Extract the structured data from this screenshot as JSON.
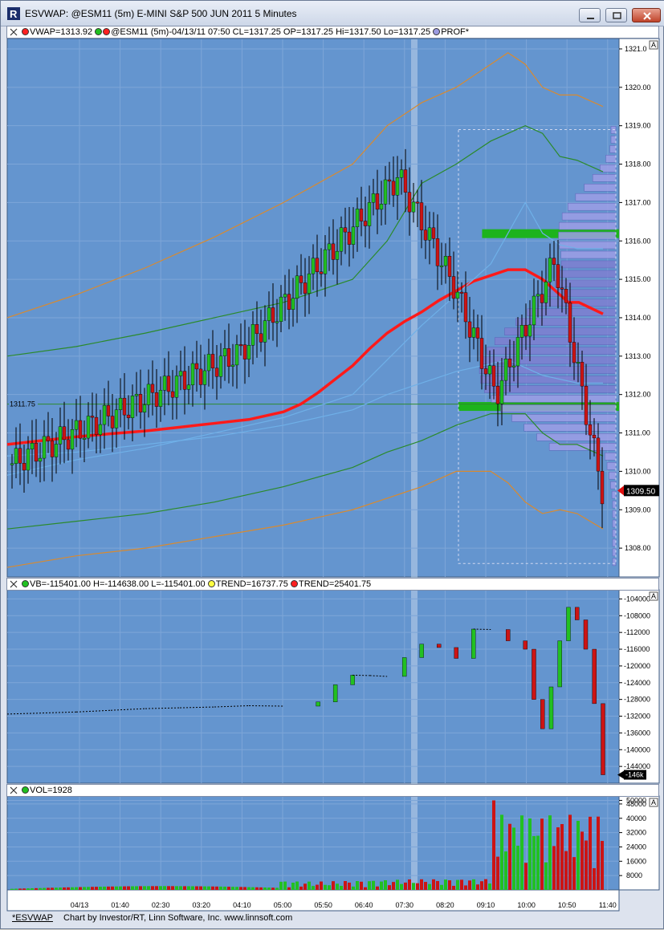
{
  "window": {
    "title": "ESVWAP: @ESM11 (5m) E-MINI S&P 500 JUN 2011 5 Minutes"
  },
  "panes": {
    "price": {
      "legend": [
        {
          "color": "#ff2020",
          "text": "VWAP=1313.92"
        },
        {
          "color": "#20c020",
          "text": "",
          "pair": "#ff2020"
        },
        {
          "color": "",
          "text": "@ESM11 (5m)-04/13/11 07:50  CL=1317.25  OP=1317.25  Hi=1317.50  Lo=1317.25"
        },
        {
          "color": "#9b9be0",
          "text": "PROF*"
        }
      ],
      "autoscale_label": "A",
      "marker_left": "1311.75",
      "last_price": "1309.50"
    },
    "volume_breadth": {
      "legend": [
        {
          "color": "#20c020",
          "text": "VB=-115401.00  H=-114638.00  L=-115401.00"
        },
        {
          "color": "#ffff40",
          "text": "TREND=16737.75"
        },
        {
          "color": "#ff2020",
          "text": "TREND=25401.75"
        }
      ],
      "autoscale_label": "A",
      "last_value": "-146k"
    },
    "volume": {
      "legend": [
        {
          "color": "#20c020",
          "text": "VOL=1928"
        }
      ],
      "autoscale_label": "A"
    }
  },
  "status": {
    "name": "*ESVWAP",
    "credit": "Chart by Investor/RT, Linn Software, Inc. www.linnsoft.com"
  },
  "chart_data": [
    {
      "type": "candlestick",
      "ylim": [
        1307.25,
        1321.25
      ],
      "y_ticks": [
        "1321.0",
        "1320.00",
        "1319.00",
        "1318.00",
        "1317.00",
        "1316.00",
        "1315.00",
        "1314.00",
        "1313.00",
        "1312.00",
        "1311.00",
        "1310.00",
        "1309.00",
        "1308.00"
      ],
      "series": [
        {
          "name": "VWAP",
          "color": "#ff1a1a",
          "x": [
            0,
            20,
            40,
            60,
            80,
            100,
            120,
            140,
            160,
            170,
            180,
            190,
            200,
            210,
            220,
            230,
            240,
            250,
            260,
            270,
            280,
            290,
            300,
            310,
            320,
            325,
            331,
            345
          ],
          "y": [
            1310.7,
            1310.8,
            1310.9,
            1310.98,
            1311.05,
            1311.15,
            1311.25,
            1311.35,
            1311.55,
            1311.75,
            1312.05,
            1312.4,
            1312.75,
            1313.2,
            1313.6,
            1313.9,
            1314.15,
            1314.45,
            1314.7,
            1314.95,
            1315.1,
            1315.25,
            1315.25,
            1315.0,
            1314.6,
            1314.4,
            1314.4,
            1314.1
          ]
        },
        {
          "name": "",
          "color": "#2b8a2b",
          "role": "upper band 1",
          "x": [
            0,
            40,
            80,
            120,
            160,
            200,
            220,
            240,
            260,
            280,
            300,
            310,
            320,
            330,
            345
          ],
          "y": [
            1313.0,
            1313.25,
            1313.6,
            1314.0,
            1314.4,
            1315.0,
            1316.0,
            1317.5,
            1318.0,
            1318.6,
            1319.0,
            1318.8,
            1318.2,
            1318.1,
            1317.8
          ]
        },
        {
          "name": "",
          "color": "#2b8a2b",
          "role": "lower band 1",
          "x": [
            0,
            40,
            80,
            120,
            160,
            200,
            220,
            240,
            260,
            280,
            300,
            310,
            320,
            330,
            345
          ],
          "y": [
            1308.5,
            1308.7,
            1308.9,
            1309.2,
            1309.6,
            1310.1,
            1310.5,
            1310.8,
            1311.2,
            1311.5,
            1311.5,
            1311.0,
            1310.7,
            1310.7,
            1310.4
          ]
        },
        {
          "name": "",
          "color": "#d88a30",
          "role": "upper band 2",
          "x": [
            0,
            40,
            80,
            120,
            160,
            200,
            220,
            240,
            260,
            280,
            290,
            300,
            310,
            320,
            330,
            345
          ],
          "y": [
            1314.0,
            1314.6,
            1315.3,
            1316.1,
            1317.0,
            1318.0,
            1319.0,
            1319.6,
            1320.0,
            1320.6,
            1320.9,
            1320.6,
            1320.0,
            1319.8,
            1319.8,
            1319.5
          ]
        },
        {
          "name": "",
          "color": "#d88a30",
          "role": "lower band 2",
          "x": [
            0,
            40,
            80,
            120,
            160,
            200,
            220,
            240,
            260,
            280,
            290,
            300,
            310,
            320,
            330,
            345
          ],
          "y": [
            1307.5,
            1307.8,
            1308.0,
            1308.3,
            1308.6,
            1309.0,
            1309.3,
            1309.6,
            1310.0,
            1310.0,
            1309.7,
            1309.2,
            1308.9,
            1309.0,
            1308.9,
            1308.5
          ]
        },
        {
          "name": "",
          "color": "#6fb0e8",
          "role": "inner band",
          "x": [
            0,
            40,
            80,
            120,
            160,
            200,
            220,
            240,
            260,
            280,
            290,
            300,
            310,
            320,
            330,
            345
          ],
          "y": [
            1309.9,
            1310.3,
            1310.6,
            1311.0,
            1311.4,
            1312.0,
            1312.9,
            1313.8,
            1314.6,
            1315.4,
            1316.2,
            1317.0,
            1316.2,
            1315.9,
            1315.8,
            1315.8
          ]
        },
        {
          "name": "",
          "color": "#6fb0e8",
          "role": "inner band lower",
          "x": [
            0,
            40,
            80,
            120,
            160,
            200,
            220,
            240,
            260,
            280,
            290,
            300,
            310,
            320,
            330,
            345
          ],
          "y": [
            1310.4,
            1310.5,
            1310.7,
            1310.9,
            1311.2,
            1311.6,
            1312.0,
            1312.3,
            1312.6,
            1312.8,
            1312.9,
            1312.7,
            1312.5,
            1312.4,
            1312.3,
            1312.3
          ]
        }
      ],
      "value_area_high": 1316.2,
      "value_area_low": 1311.7,
      "reference_line": 1311.75
    },
    {
      "type": "candlestick",
      "title": "VB",
      "ylim": [
        -148000,
        -102000
      ],
      "y_ticks": [
        "-104000",
        "-108000",
        "-112000",
        "-116000",
        "-120000",
        "-124000",
        "-128000",
        "-132000",
        "-136000",
        "-140000",
        "-144000"
      ],
      "series": [
        {
          "name": "VB",
          "x": [
            0,
            40,
            60,
            80,
            100,
            120,
            140,
            160,
            180,
            190,
            200,
            210,
            220,
            230,
            240,
            250,
            260,
            270,
            280,
            290,
            300,
            305,
            310,
            315,
            320,
            325,
            330,
            335,
            340,
            345
          ],
          "y": [
            -131500,
            -131000,
            -130600,
            -130200,
            -130000,
            -129800,
            -129500,
            -129600,
            -128600,
            -124500,
            -122200,
            -122300,
            -122500,
            -118000,
            -114800,
            -115600,
            -118200,
            -111200,
            -111300,
            -114000,
            -116000,
            -128000,
            -135000,
            -125000,
            -114000,
            -106000,
            -109000,
            -116000,
            -129000,
            -146000
          ]
        }
      ]
    },
    {
      "type": "bar",
      "title": "VOL",
      "ylim": [
        0,
        52000
      ],
      "y_ticks": [
        "50000",
        "48000",
        "40000",
        "32000",
        "24000",
        "16000",
        "8000"
      ],
      "x_ticks": [
        "04/13",
        "01:40",
        "02:30",
        "03:20",
        "04:10",
        "05:00",
        "05:50",
        "06:40",
        "07:30",
        "08:20",
        "09:10",
        "10:00",
        "10:50",
        "11:40"
      ]
    }
  ]
}
